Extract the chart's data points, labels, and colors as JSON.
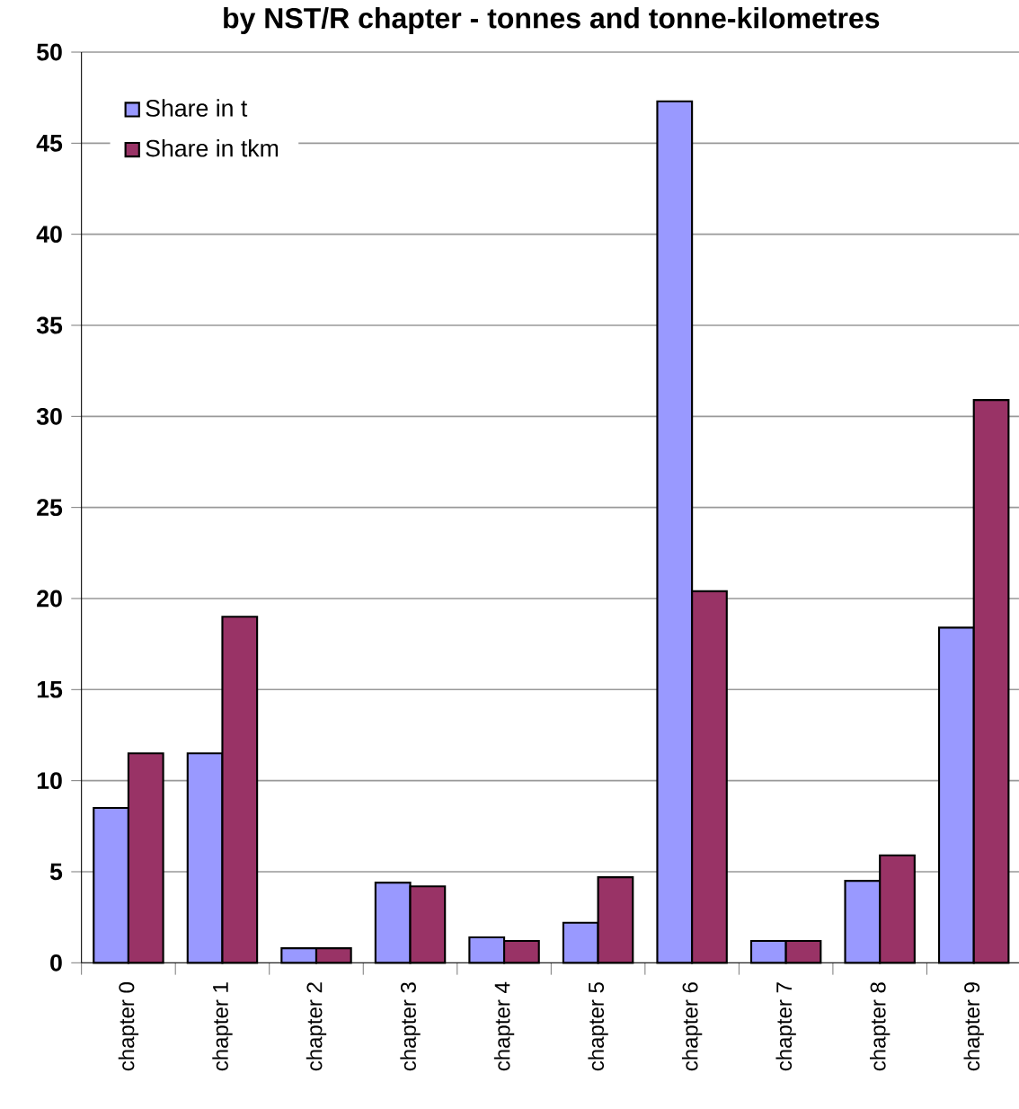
{
  "chart_data": {
    "type": "bar",
    "title": "by NST/R chapter  - tonnes and tonne-kilometres",
    "categories": [
      "chapter 0",
      "chapter 1",
      "chapter 2",
      "chapter 3",
      "chapter 4",
      "chapter 5",
      "chapter 6",
      "chapter 7",
      "chapter 8",
      "chapter 9"
    ],
    "series": [
      {
        "name": "Share in t",
        "color": "#9999ff",
        "values": [
          8.5,
          11.5,
          0.8,
          4.4,
          1.4,
          2.2,
          47.3,
          1.2,
          4.5,
          18.4
        ]
      },
      {
        "name": "Share in tkm",
        "color": "#993366",
        "values": [
          11.5,
          19.0,
          0.8,
          4.2,
          1.2,
          4.7,
          20.4,
          1.2,
          5.9,
          30.9
        ]
      }
    ],
    "ylim": [
      0,
      50
    ],
    "yticks": [
      0,
      5,
      10,
      15,
      20,
      25,
      30,
      35,
      40,
      45,
      50
    ],
    "grid": "y",
    "legend": "top left"
  }
}
